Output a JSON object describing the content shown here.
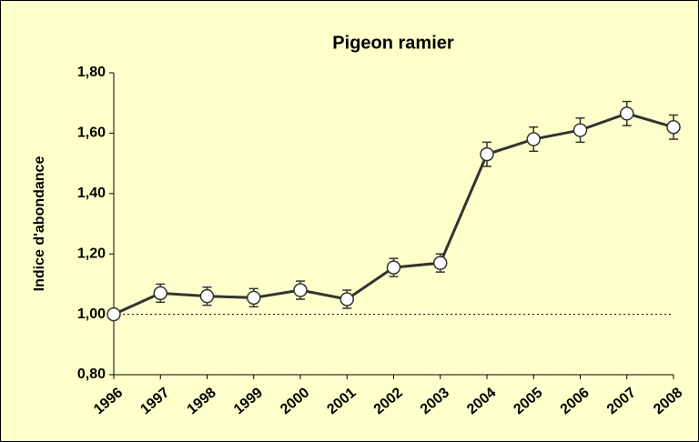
{
  "chart_data": {
    "type": "line",
    "title": "Pigeon ramier",
    "y_label": "Indice d'abondance",
    "categories": [
      "1996",
      "1997",
      "1998",
      "1999",
      "2000",
      "2001",
      "2002",
      "2003",
      "2004",
      "2005",
      "2006",
      "2007",
      "2008"
    ],
    "series": [
      {
        "name": "Pigeon ramier",
        "color": "#333333",
        "values": [
          1.0,
          1.07,
          1.06,
          1.055,
          1.08,
          1.05,
          1.155,
          1.17,
          1.53,
          1.58,
          1.61,
          1.665,
          1.62
        ],
        "errors": [
          0,
          0.03,
          0.03,
          0.03,
          0.03,
          0.03,
          0.03,
          0.03,
          0.04,
          0.04,
          0.04,
          0.04,
          0.04
        ]
      }
    ],
    "ylim": [
      0.8,
      1.8
    ],
    "yticks": [
      {
        "value": 0.8,
        "label": "0,80"
      },
      {
        "value": 1.0,
        "label": "1,00"
      },
      {
        "value": 1.2,
        "label": "1,20"
      },
      {
        "value": 1.4,
        "label": "1,40"
      },
      {
        "value": 1.6,
        "label": "1,60"
      },
      {
        "value": 1.8,
        "label": "1,80"
      }
    ],
    "reference_line": 1.0,
    "background": "#ffffcc"
  }
}
